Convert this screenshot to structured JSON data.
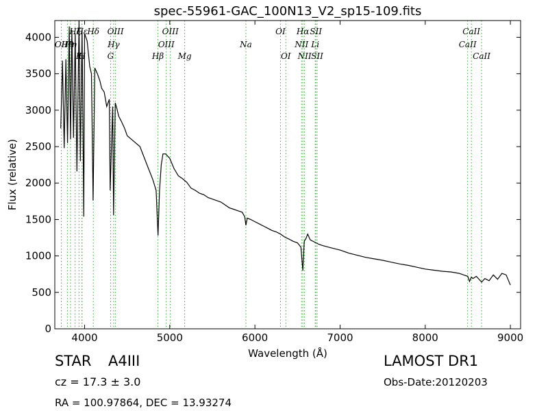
{
  "chart_data": {
    "type": "line",
    "title": "spec-55961-GAC_100N13_V2_sp15-109.fits",
    "xlabel": "Wavelength (Å)",
    "ylabel": "Flux (relative)",
    "xlim": [
      3650,
      9120
    ],
    "ylim": [
      0,
      4230
    ],
    "xticks": [
      4000,
      5000,
      6000,
      7000,
      8000,
      9000
    ],
    "yticks": [
      0,
      500,
      1000,
      1500,
      2000,
      2500,
      3000,
      3500,
      4000
    ],
    "grid": false,
    "series": [
      {
        "x": [
          3720,
          3740,
          3760,
          3780,
          3800,
          3820,
          3835,
          3850,
          3870,
          3890,
          3910,
          3935,
          3950,
          3970,
          3990,
          4000,
          4030,
          4060,
          4080,
          4100,
          4120,
          4150,
          4180,
          4200,
          4230,
          4260,
          4290,
          4300,
          4330,
          4340,
          4360,
          4380,
          4400,
          4430,
          4470,
          4500,
          4550,
          4600,
          4650,
          4700,
          4750,
          4800,
          4840,
          4862,
          4880,
          4900,
          4920,
          4950,
          5000,
          5050,
          5100,
          5150,
          5200,
          5250,
          5300,
          5350,
          5400,
          5450,
          5500,
          5550,
          5600,
          5650,
          5700,
          5750,
          5800,
          5850,
          5880,
          5894,
          5910,
          5950,
          6000,
          6050,
          6100,
          6150,
          6200,
          6250,
          6300,
          6350,
          6400,
          6450,
          6500,
          6540,
          6563,
          6580,
          6600,
          6620,
          6650,
          6700,
          6750,
          6800,
          6900,
          7000,
          7100,
          7200,
          7300,
          7400,
          7500,
          7600,
          7700,
          7800,
          7900,
          8000,
          8100,
          8200,
          8300,
          8400,
          8450,
          8500,
          8520,
          8542,
          8560,
          8600,
          8662,
          8700,
          8750,
          8800,
          8850,
          8900,
          8950,
          9000
        ],
        "y": [
          2750,
          3680,
          2480,
          3700,
          2550,
          4150,
          2600,
          4100,
          2620,
          4050,
          2160,
          4250,
          2300,
          4100,
          1540,
          4050,
          3950,
          3600,
          3500,
          1760,
          3580,
          3500,
          3400,
          3300,
          3250,
          3050,
          3150,
          1900,
          3050,
          1560,
          3100,
          3020,
          2920,
          2850,
          2750,
          2650,
          2600,
          2550,
          2500,
          2350,
          2200,
          2050,
          1900,
          1280,
          1900,
          2250,
          2400,
          2400,
          2340,
          2200,
          2100,
          2060,
          2010,
          1930,
          1900,
          1860,
          1840,
          1800,
          1780,
          1760,
          1740,
          1700,
          1660,
          1640,
          1620,
          1600,
          1540,
          1420,
          1520,
          1500,
          1470,
          1440,
          1410,
          1380,
          1350,
          1330,
          1300,
          1260,
          1230,
          1200,
          1180,
          1120,
          800,
          1200,
          1240,
          1300,
          1220,
          1190,
          1160,
          1140,
          1110,
          1080,
          1040,
          1010,
          980,
          960,
          940,
          915,
          890,
          870,
          845,
          820,
          805,
          790,
          780,
          760,
          740,
          720,
          650,
          710,
          690,
          720,
          640,
          690,
          660,
          740,
          680,
          760,
          740,
          600
        ]
      }
    ],
    "lines": [
      {
        "label": "OII",
        "wave": 3727,
        "row": 2
      },
      {
        "label": "Hθ",
        "wave": 3798,
        "row": 2
      },
      {
        "label": "Hη",
        "wave": 3835,
        "row": 2
      },
      {
        "label": "Hζ",
        "wave": 3889,
        "row": 1
      },
      {
        "label": "Hε",
        "wave": 3970,
        "row": 1
      },
      {
        "label": "K",
        "wave": 3934,
        "row": 3
      },
      {
        "label": "H",
        "wave": 3969,
        "row": 3
      },
      {
        "label": "Hδ",
        "wave": 4102,
        "row": 1
      },
      {
        "label": "G",
        "wave": 4305,
        "row": 3
      },
      {
        "label": "Hγ",
        "wave": 4341,
        "row": 2
      },
      {
        "label": "OIII",
        "wave": 4363,
        "row": 1
      },
      {
        "label": "Hβ",
        "wave": 4861,
        "row": 3
      },
      {
        "label": "OIII",
        "wave": 4959,
        "row": 2
      },
      {
        "label": "OIII",
        "wave": 5007,
        "row": 1
      },
      {
        "label": "Mg",
        "wave": 5175,
        "row": 3
      },
      {
        "label": "Na",
        "wave": 5894,
        "row": 2
      },
      {
        "label": "OI",
        "wave": 6300,
        "row": 1
      },
      {
        "label": "OI",
        "wave": 6363,
        "row": 3
      },
      {
        "label": "NII",
        "wave": 6548,
        "row": 2
      },
      {
        "label": "Hα",
        "wave": 6563,
        "row": 1
      },
      {
        "label": "NII",
        "wave": 6583,
        "row": 3
      },
      {
        "label": "Li",
        "wave": 6708,
        "row": 2
      },
      {
        "label": "SII",
        "wave": 6716,
        "row": 1
      },
      {
        "label": "SII",
        "wave": 6731,
        "row": 3
      },
      {
        "label": "CaII",
        "wave": 8498,
        "row": 2
      },
      {
        "label": "CaII",
        "wave": 8542,
        "row": 1
      },
      {
        "label": "CaII",
        "wave": 8662,
        "row": 3
      }
    ],
    "colors": {
      "spectrum": "#000000",
      "line_marker": "#33aa33"
    }
  },
  "info": {
    "object_class": "STAR",
    "subclass": "A4III",
    "redshift": "cz = 17.3 ± 3.0",
    "coords": "RA = 100.97864, DEC = 13.93274",
    "survey": "LAMOST DR1",
    "obs_date": "Obs-Date:20120203"
  }
}
